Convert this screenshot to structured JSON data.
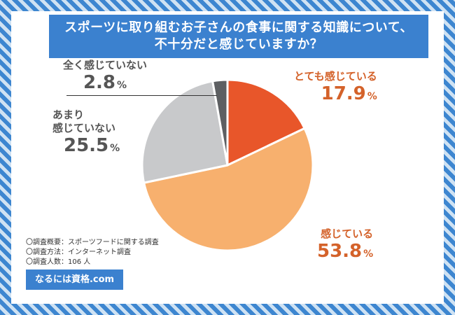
{
  "title_lines": [
    "スポーツに取り組むお子さんの食事に関する知識について、",
    "不十分だと感じていますか？"
  ],
  "colors": {
    "background_stripe_dark": "#3d86d0",
    "background_stripe_light": "#cfe2f3",
    "title_band": "#3b81cf",
    "accent_text": "#d4622a",
    "slice_strongly": "#e8562a",
    "slice_feel": "#f7b06e",
    "slice_not_much": "#c8c9cb",
    "slice_not_at_all": "#5d5f62"
  },
  "chart_data": {
    "type": "pie",
    "title": "スポーツに取り組むお子さんの食事に関する知識について、不十分だと感じていますか？",
    "start": "12 o'clock",
    "direction": "clockwise",
    "slices": [
      {
        "label": "とても感じている",
        "value": 17.9,
        "display": "17.9",
        "unit": "%",
        "color": "#e8562a"
      },
      {
        "label": "感じている",
        "value": 53.8,
        "display": "53.8",
        "unit": "%",
        "color": "#f7b06e"
      },
      {
        "label": "あまり感じていない",
        "label_lines": [
          "あまり",
          "感じていない"
        ],
        "value": 25.5,
        "display": "25.5",
        "unit": "%",
        "color": "#c8c9cb"
      },
      {
        "label": "全く感じていない",
        "value": 2.8,
        "display": "2.8",
        "unit": "%",
        "color": "#5d5f62"
      }
    ]
  },
  "survey_notes": [
    "〇調査概要：スポーツフードに関する調査",
    "〇調査方法：インターネット調査",
    "〇調査人数：106 人"
  ],
  "brand_label": "なるには資格.com"
}
